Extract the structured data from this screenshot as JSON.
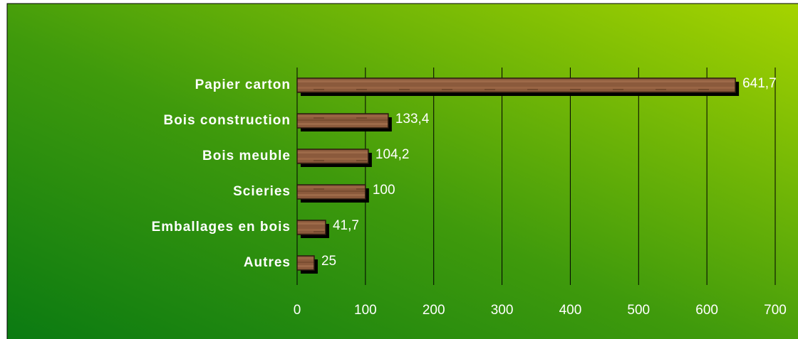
{
  "chart_data": {
    "type": "bar",
    "orientation": "horizontal",
    "categories": [
      "Papier carton",
      "Bois construction",
      "Bois meuble",
      "Scieries",
      "Emballages en bois",
      "Autres"
    ],
    "values": [
      641.7,
      133.4,
      104.2,
      100,
      41.7,
      25
    ],
    "value_labels": [
      "641,7",
      "133,4",
      "104,2",
      "100",
      "41,7",
      "25"
    ],
    "color": "#8b5a3c",
    "xlim": [
      0,
      700
    ],
    "xticks": [
      0,
      100,
      200,
      300,
      400,
      500,
      600,
      700
    ],
    "grid": true
  }
}
